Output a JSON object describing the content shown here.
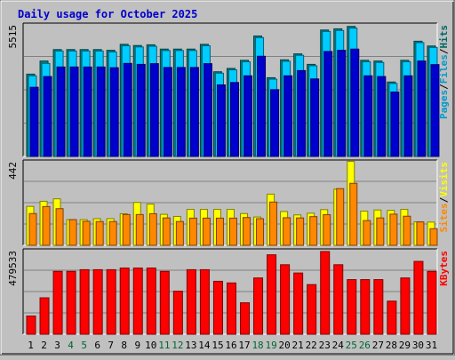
{
  "title": "Daily usage for October 2025",
  "colors": {
    "background": "#C0C0C0",
    "title": "#0000CC",
    "hits": "#006666",
    "files": "#00CCFF",
    "pages": "#0000CC",
    "visits": "#FFFF00",
    "sites": "#FF8800",
    "kbytes": "#FF0000",
    "weekend_label": "#006633",
    "weekday_label": "#000000"
  },
  "chart_data": [
    {
      "type": "bar",
      "panel": "hits-files-pages",
      "ymax_label": "5515",
      "legend": [
        {
          "name": "Pages",
          "color": "#0099CC"
        },
        {
          "name": "/",
          "color": "#000000"
        },
        {
          "name": "Files",
          "color": "#0099CC"
        },
        {
          "name": "/",
          "color": "#000000"
        },
        {
          "name": "Hits",
          "color": "#006666"
        }
      ],
      "categories": [
        "1",
        "2",
        "3",
        "4",
        "5",
        "6",
        "7",
        "8",
        "9",
        "10",
        "11",
        "12",
        "13",
        "14",
        "15",
        "16",
        "17",
        "18",
        "19",
        "20",
        "21",
        "22",
        "23",
        "24",
        "25",
        "26",
        "27",
        "28",
        "29",
        "30",
        "31"
      ],
      "series": [
        {
          "name": "Hits",
          "values": [
            3450,
            4000,
            4480,
            4480,
            4480,
            4480,
            4450,
            4700,
            4650,
            4680,
            4500,
            4500,
            4500,
            4700,
            3550,
            3690,
            4030,
            5050,
            3300,
            4050,
            4300,
            3860,
            5300,
            5350,
            5450,
            4030,
            4000,
            3120,
            4030,
            4830,
            4630
          ]
        },
        {
          "name": "Files",
          "values": [
            3380,
            3900,
            4420,
            4420,
            4420,
            4420,
            4380,
            4640,
            4590,
            4620,
            4440,
            4440,
            4440,
            4640,
            3490,
            3630,
            3970,
            4980,
            3240,
            3990,
            4240,
            3800,
            5240,
            5280,
            5380,
            3970,
            3940,
            3060,
            3970,
            4770,
            4570
          ]
        },
        {
          "name": "Pages",
          "values": [
            2900,
            3350,
            3750,
            3750,
            3750,
            3750,
            3720,
            3900,
            3860,
            3890,
            3730,
            3730,
            3730,
            3890,
            3000,
            3100,
            3380,
            4200,
            2800,
            3380,
            3600,
            3250,
            4400,
            4450,
            4500,
            3380,
            3350,
            2700,
            3380,
            4000,
            3850
          ]
        }
      ]
    },
    {
      "type": "bar",
      "panel": "visits-sites",
      "ymax_label": "442",
      "legend": [
        {
          "name": "Sites",
          "color": "#FF8800"
        },
        {
          "name": "/",
          "color": "#000000"
        },
        {
          "name": "Visits",
          "color": "#FFFF00"
        }
      ],
      "series": [
        {
          "name": "Visits",
          "values": [
            206,
            233,
            246,
            136,
            136,
            141,
            141,
            167,
            227,
            218,
            164,
            153,
            190,
            190,
            190,
            190,
            168,
            150,
            271,
            179,
            161,
            170,
            189,
            297,
            444,
            181,
            187,
            185,
            190,
            124,
            123
          ]
        },
        {
          "name": "Sites",
          "values": [
            168,
            205,
            194,
            136,
            127,
            126,
            126,
            163,
            163,
            167,
            145,
            126,
            144,
            144,
            144,
            144,
            147,
            141,
            229,
            146,
            145,
            152,
            162,
            300,
            328,
            131,
            145,
            165,
            154,
            124,
            88
          ]
        }
      ]
    },
    {
      "type": "bar",
      "panel": "kbytes",
      "ymax_label": "479533",
      "legend": [
        {
          "name": "KBytes",
          "color": "#FF0000"
        }
      ],
      "series": [
        {
          "name": "KBytes",
          "values": [
            110000,
            220000,
            380000,
            380000,
            390000,
            390000,
            390000,
            400000,
            400000,
            400000,
            380000,
            260000,
            390000,
            390000,
            320000,
            310000,
            190000,
            340000,
            480000,
            420000,
            370000,
            300000,
            500000,
            420000,
            330000,
            330000,
            330000,
            200000,
            340000,
            440000,
            380000
          ]
        }
      ]
    }
  ],
  "weekend_days": [
    "4",
    "5",
    "11",
    "12",
    "18",
    "19",
    "25",
    "26"
  ]
}
